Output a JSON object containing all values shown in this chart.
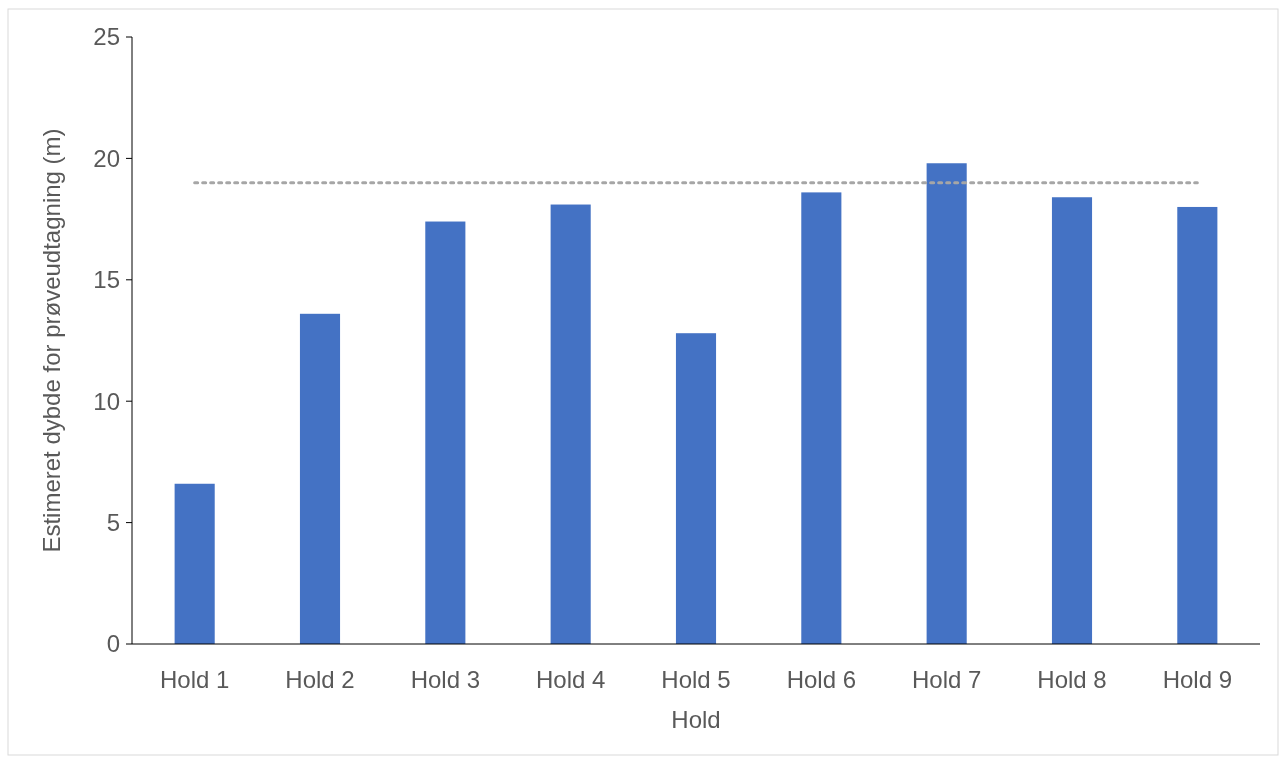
{
  "chart_data": {
    "type": "bar",
    "xlabel": "Hold",
    "ylabel": "Estimeret dybde for prøveudtagning (m)",
    "categories": [
      "Hold 1",
      "Hold 2",
      "Hold 3",
      "Hold 4",
      "Hold 5",
      "Hold 6",
      "Hold 7",
      "Hold 8",
      "Hold 9"
    ],
    "values": [
      6.6,
      13.6,
      17.4,
      18.1,
      12.8,
      18.6,
      19.8,
      18.4,
      18.0
    ],
    "color": "#4472c4",
    "ylim": [
      0,
      25
    ],
    "yticks": [
      0,
      5,
      10,
      15,
      20,
      25
    ],
    "grid": false,
    "ref_lines": [
      {
        "axis": "y",
        "value": 19.0,
        "color": "#a6a6a6",
        "line_style": "dotted"
      }
    ]
  }
}
